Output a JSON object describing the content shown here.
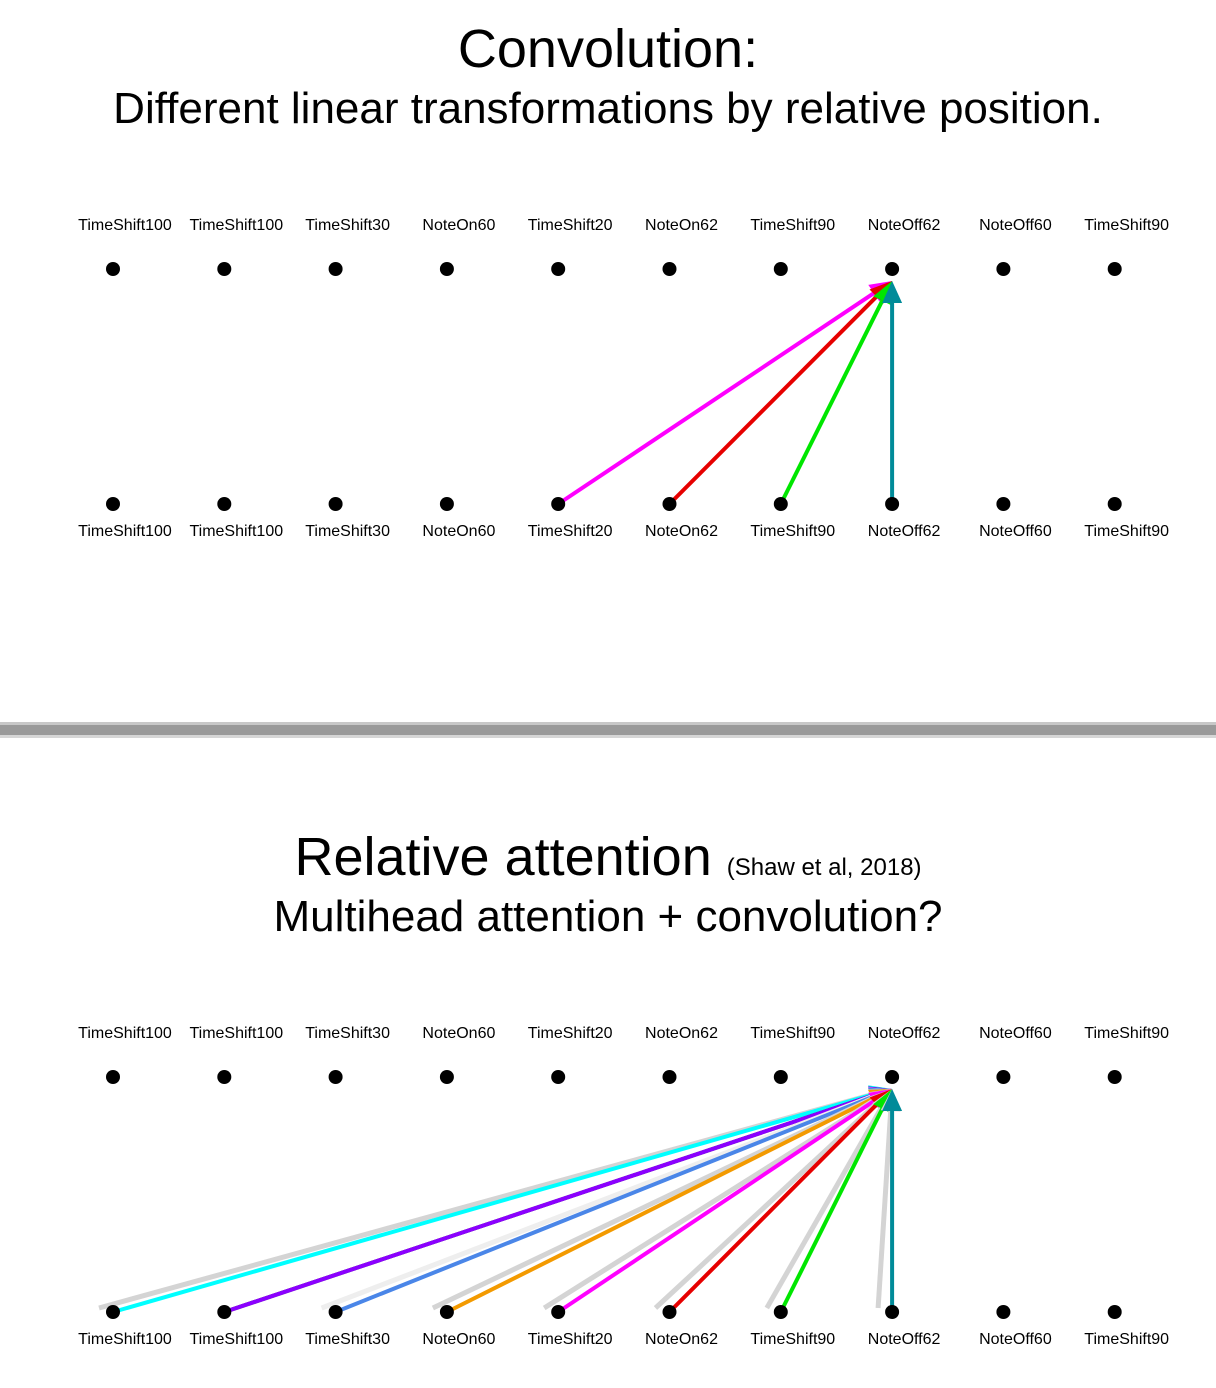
{
  "top": {
    "title": "Convolution:",
    "subtitle": "Different linear transformations by relative position."
  },
  "bottom": {
    "title": "Relative attention",
    "citation": "(Shaw et al, 2018)",
    "subtitle": "Multihead attention + convolution?"
  },
  "tokens": [
    "TimeShift100",
    "TimeShift100",
    "TimeShift30",
    "NoteOn60",
    "TimeShift20",
    "NoteOn62",
    "TimeShift90",
    "NoteOff62",
    "NoteOff60",
    "TimeShift90"
  ],
  "target_index": 7,
  "convolution_arrows": [
    {
      "from": 4,
      "color": "#ff00ff"
    },
    {
      "from": 5,
      "color": "#e60000"
    },
    {
      "from": 6,
      "color": "#00e600"
    },
    {
      "from": 7,
      "color": "#008b99"
    }
  ],
  "relative_attention_arrows": [
    {
      "from": 0,
      "color": "#d4d4d4",
      "ghost": true
    },
    {
      "from": 0,
      "color": "#00ffff"
    },
    {
      "from": 1,
      "color": "#333333"
    },
    {
      "from": 1,
      "color": "#8b00ff"
    },
    {
      "from": 2,
      "color": "#eeeeee",
      "ghost": true
    },
    {
      "from": 2,
      "color": "#4a86e8"
    },
    {
      "from": 3,
      "color": "#d4d4d4",
      "ghost": true
    },
    {
      "from": 3,
      "color": "#f39a00"
    },
    {
      "from": 4,
      "color": "#d4d4d4",
      "ghost": true
    },
    {
      "from": 4,
      "color": "#ff00ff"
    },
    {
      "from": 5,
      "color": "#d4d4d4",
      "ghost": true
    },
    {
      "from": 5,
      "color": "#e60000"
    },
    {
      "from": 6,
      "color": "#d4d4d4",
      "ghost": true
    },
    {
      "from": 6,
      "color": "#00e600"
    },
    {
      "from": 7,
      "color": "#d4d4d4",
      "ghost": true
    },
    {
      "from": 7,
      "color": "#008b99"
    }
  ]
}
